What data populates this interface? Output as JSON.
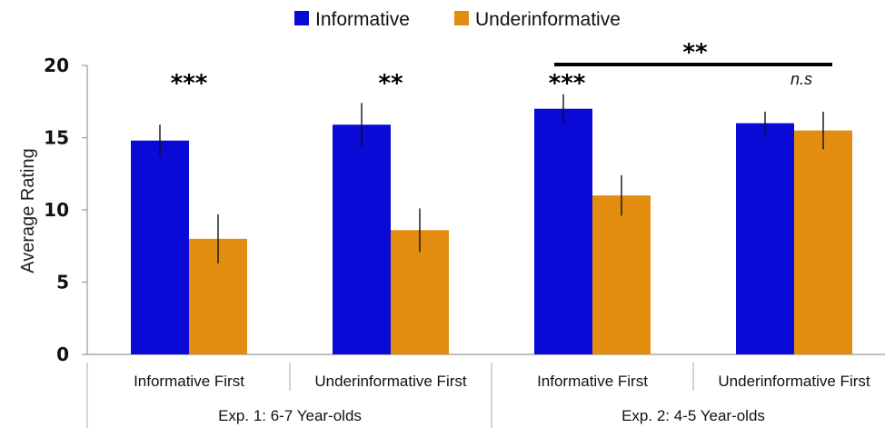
{
  "chart_data": {
    "type": "bar",
    "ylabel": "Average Rating",
    "ylim": [
      0,
      20
    ],
    "yticks": [
      0,
      5,
      10,
      15,
      20
    ],
    "legend": {
      "placement": "top-center"
    },
    "categories": [
      "Informative First",
      "Underinformative First",
      "Informative First",
      "Underinformative First"
    ],
    "groups": [
      {
        "label": "Exp. 1: 6-7 Year-olds",
        "categories": [
          0,
          1
        ]
      },
      {
        "label": "Exp. 2: 4-5 Year-olds",
        "categories": [
          2,
          3
        ]
      }
    ],
    "series": [
      {
        "name": "Informative",
        "color": "#0a0ad6",
        "values": [
          14.8,
          15.9,
          17.0,
          16.0
        ],
        "errors": [
          1.1,
          1.5,
          1.0,
          0.8
        ]
      },
      {
        "name": "Underinformative",
        "color": "#e38d10",
        "values": [
          8.0,
          8.6,
          11.0,
          15.5
        ],
        "errors": [
          1.7,
          1.5,
          1.4,
          1.3
        ]
      }
    ],
    "annotations": [
      {
        "category": 0,
        "text": "***"
      },
      {
        "category": 1,
        "text": "**"
      },
      {
        "category": 2,
        "text": "***"
      },
      {
        "category": 3,
        "text": "n.s"
      },
      {
        "bracket": [
          2,
          3
        ],
        "text": "**"
      }
    ]
  }
}
